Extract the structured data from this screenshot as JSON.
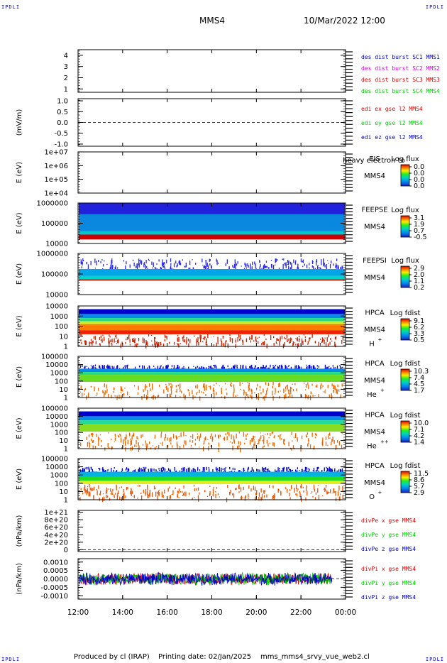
{
  "header": {
    "corner_left_top": "IPDLI",
    "corner_right_top": "IPDLI",
    "corner_left_bottom": "IPDLI",
    "corner_right_bottom": "IPDLI",
    "spacecraft": "MMS4",
    "datetime": "10/Mar/2022 12:00"
  },
  "footer": {
    "produced_by": "Produced by cl (IRAP)",
    "printing_date": "Printing date: 02/Jan/2025",
    "filename": "mms_mms4_srvy_vue_web2.cl"
  },
  "x_axis": {
    "ticks": [
      "12:00",
      "14:00",
      "16:00",
      "18:00",
      "20:00",
      "22:00",
      "00:00"
    ]
  },
  "colors": {
    "blue": "#0000cc",
    "magenta": "#dd00dd",
    "red": "#dd0000",
    "green": "#00cc00"
  },
  "chart_data": [
    {
      "type": "line",
      "id": "des-dist-burst",
      "ylabel": "",
      "yticks": [
        "1",
        "2",
        "3",
        "4"
      ],
      "ylim": [
        0.7,
        4.5
      ],
      "legend": [
        {
          "text": "des dist burst SC1 MMS1",
          "color": "#0000cc"
        },
        {
          "text": "des dist burst SC2 MMS2",
          "color": "#dd00dd"
        },
        {
          "text": "des dist burst SC3 MMS3",
          "color": "#dd0000"
        },
        {
          "text": "des dist burst SC4 MMS4",
          "color": "#00cc00"
        }
      ],
      "series": []
    },
    {
      "type": "line",
      "id": "edi-e",
      "ylabel": "(mV/m)",
      "yticks": [
        "1.0",
        "0.5",
        "0.0",
        "-0.5",
        "-1.0"
      ],
      "ylim": [
        -1.1,
        1.1
      ],
      "reference_line": 0.0,
      "legend": [
        {
          "text": "edi ex gse l2 MMS4",
          "color": "#dd0000"
        },
        {
          "text": "edi ey gse l2 MMS4",
          "color": "#00cc00"
        },
        {
          "text": "edi ez gse l2 MMS4",
          "color": "#0000cc"
        }
      ],
      "series": []
    },
    {
      "type": "heatmap",
      "id": "eis",
      "ylabel": "E (eV)",
      "yticks": [
        "1e+07",
        "1e+06",
        "1e+05",
        "1e+04"
      ],
      "scale": "log",
      "labels": [
        "EIS",
        "MMS4"
      ],
      "overlay_text": "heavy electron to",
      "colorbar": {
        "title": "Log flux",
        "ticks": [
          "0.0",
          "0.0",
          "0.0",
          "0.0"
        ]
      },
      "bands": []
    },
    {
      "type": "heatmap",
      "id": "feepse",
      "ylabel": "E (eV)",
      "yticks": [
        "1000000",
        "100000",
        "10000"
      ],
      "scale": "log",
      "labels": [
        "FEEPSE",
        "MMS4"
      ],
      "colorbar": {
        "title": "Log flux",
        "ticks": [
          "3.1",
          "1.9",
          "0.7",
          "-0.5"
        ]
      },
      "bands": [
        {
          "from": 1.0,
          "to": 0.72,
          "color": "#2222dd"
        },
        {
          "from": 0.72,
          "to": 0.3,
          "color": "#0a88e0"
        },
        {
          "from": 0.3,
          "to": 0.22,
          "color": "#00c6d0"
        },
        {
          "from": 0.22,
          "to": 0.1,
          "color": "#cc0000"
        }
      ]
    },
    {
      "type": "heatmap",
      "id": "feepsi",
      "ylabel": "E (eV)",
      "yticks": [
        "1000000",
        "100000",
        "10000"
      ],
      "scale": "log",
      "labels": [
        "FEEPSI",
        "MMS4"
      ],
      "colorbar": {
        "title": "Log flux",
        "ticks": [
          "2.9",
          "2.0",
          "1.1",
          "0.2"
        ]
      },
      "bands": [
        {
          "from": 0.88,
          "to": 0.62,
          "color": "#2a2aee",
          "sparse": true
        },
        {
          "from": 0.62,
          "to": 0.45,
          "color": "#00a6e6"
        },
        {
          "from": 0.45,
          "to": 0.37,
          "color": "#00d6c8"
        },
        {
          "from": 0.37,
          "to": 0.34,
          "color": "#cc1100"
        }
      ]
    },
    {
      "type": "heatmap",
      "id": "hpca-h",
      "ylabel": "E (eV)",
      "yticks": [
        "10000",
        "1000",
        "100",
        "10",
        "1"
      ],
      "scale": "log",
      "labels": [
        "HPCA",
        "MMS4"
      ],
      "species": "H",
      "species_charge": "+",
      "colorbar": {
        "title": "Log fdist",
        "ticks": [
          "9.1",
          "6.2",
          "3.3",
          "0.5"
        ]
      },
      "bands": [
        {
          "from": 0.92,
          "to": 0.8,
          "color": "#0000cc"
        },
        {
          "from": 0.8,
          "to": 0.7,
          "color": "#0a8ae8"
        },
        {
          "from": 0.7,
          "to": 0.62,
          "color": "#22dd88"
        },
        {
          "from": 0.62,
          "to": 0.55,
          "color": "#ccee22"
        },
        {
          "from": 0.55,
          "to": 0.4,
          "color": "#ff7a00"
        },
        {
          "from": 0.4,
          "to": 0.3,
          "color": "#ee2200"
        },
        {
          "from": 0.3,
          "to": 0.05,
          "color": "#cc2200",
          "sparse": true
        }
      ]
    },
    {
      "type": "heatmap",
      "id": "hpca-he",
      "ylabel": "E (eV)",
      "yticks": [
        "100000",
        "10000",
        "1000",
        "100",
        "10",
        "1"
      ],
      "scale": "log",
      "labels": [
        "HPCA",
        "MMS4"
      ],
      "species": "He",
      "species_charge": "+",
      "colorbar": {
        "title": "Log fdist",
        "ticks": [
          "10.3",
          "7.4",
          "4.5",
          "1.7"
        ]
      },
      "bands": [
        {
          "from": 0.8,
          "to": 0.7,
          "color": "#0000cc",
          "sparse": true
        },
        {
          "from": 0.7,
          "to": 0.62,
          "color": "#0a8ae8"
        },
        {
          "from": 0.62,
          "to": 0.55,
          "color": "#22dd88"
        },
        {
          "from": 0.55,
          "to": 0.38,
          "color": "#66dd22"
        },
        {
          "from": 0.38,
          "to": 0.02,
          "color": "#ee6600",
          "sparse": true
        }
      ]
    },
    {
      "type": "heatmap",
      "id": "hpca-he2",
      "ylabel": "E (eV)",
      "yticks": [
        "100000",
        "10000",
        "1000",
        "100",
        "10",
        "1"
      ],
      "scale": "log",
      "labels": [
        "HPCA",
        "MMS4"
      ],
      "species": "He",
      "species_charge": "++",
      "colorbar": {
        "title": "Log fdist",
        "ticks": [
          "10.0",
          "7.1",
          "4.2",
          "1.4"
        ]
      },
      "bands": [
        {
          "from": 0.92,
          "to": 0.8,
          "color": "#0000cc"
        },
        {
          "from": 0.8,
          "to": 0.7,
          "color": "#0a8ae8"
        },
        {
          "from": 0.7,
          "to": 0.6,
          "color": "#22dd99"
        },
        {
          "from": 0.6,
          "to": 0.42,
          "color": "#88dd22"
        },
        {
          "from": 0.42,
          "to": 0.02,
          "color": "#ee6600",
          "sparse": true
        }
      ]
    },
    {
      "type": "heatmap",
      "id": "hpca-o",
      "ylabel": "E (eV)",
      "yticks": [
        "100000",
        "10000",
        "1000",
        "100",
        "10",
        "1"
      ],
      "scale": "log",
      "labels": [
        "HPCA",
        "MMS4"
      ],
      "species": "O",
      "species_charge": "+",
      "colorbar": {
        "title": "Log fdist",
        "ticks": [
          "11.5",
          "8.6",
          "5.7",
          "2.9"
        ]
      },
      "bands": [
        {
          "from": 0.8,
          "to": 0.68,
          "color": "#0000cc",
          "sparse": true
        },
        {
          "from": 0.68,
          "to": 0.56,
          "color": "#00b4e0"
        },
        {
          "from": 0.56,
          "to": 0.46,
          "color": "#22dd22"
        },
        {
          "from": 0.46,
          "to": 0.38,
          "color": "#ddee22"
        },
        {
          "from": 0.38,
          "to": 0.04,
          "color": "#ee5500",
          "sparse": true
        }
      ]
    },
    {
      "type": "line",
      "id": "divpe",
      "ylabel": "(nPa/km)",
      "yticks": [
        "1e+21",
        "8e+20",
        "6e+20",
        "4e+20",
        "2e+20",
        "0"
      ],
      "ylim": [
        -5e+19,
        1.05e+21
      ],
      "reference_line": 0,
      "legend": [
        {
          "text": "divPe x gse MMS4",
          "color": "#dd0000"
        },
        {
          "text": "divPe y gse MMS4",
          "color": "#00cc00"
        },
        {
          "text": "divPe z gse MMS4",
          "color": "#0000cc"
        }
      ],
      "series": []
    },
    {
      "type": "line",
      "id": "divpi",
      "ylabel": "(nPa/km)",
      "yticks": [
        "0.0010",
        "0.0005",
        "0.0000",
        "-0.0005",
        "-0.0010"
      ],
      "ylim": [
        -0.0012,
        0.0012
      ],
      "reference_line": 0,
      "noise_amplitude": 0.0004,
      "legend": [
        {
          "text": "divPi x gse MMS4",
          "color": "#dd0000"
        },
        {
          "text": "divPi y gse MMS4",
          "color": "#00cc00"
        },
        {
          "text": "divPi z gse MMS4",
          "color": "#0000cc"
        }
      ],
      "series": [
        {
          "name": "divPi x gse MMS4",
          "color": "#dd0000"
        },
        {
          "name": "divPi y gse MMS4",
          "color": "#00cc00"
        },
        {
          "name": "divPi z gse MMS4",
          "color": "#0000cc"
        }
      ]
    }
  ]
}
